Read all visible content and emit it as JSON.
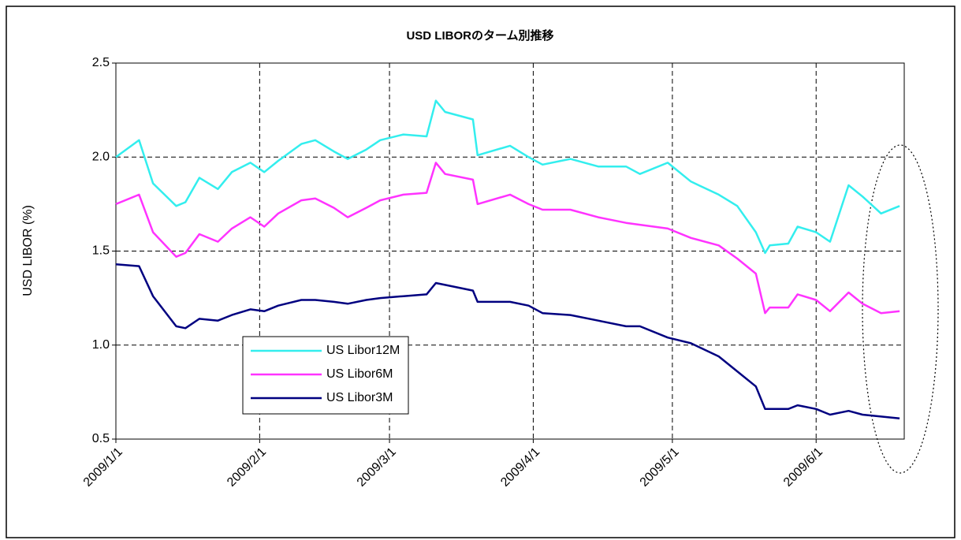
{
  "chart_data": {
    "type": "line",
    "title": "USD LIBORのターム別推移",
    "y_label": "USD LIBOR (%)",
    "x": [
      "2009/1/1",
      "2009/1/6",
      "2009/1/9",
      "2009/1/14",
      "2009/1/16",
      "2009/1/19",
      "2009/1/23",
      "2009/1/26",
      "2009/1/30",
      "2009/2/2",
      "2009/2/5",
      "2009/2/10",
      "2009/2/13",
      "2009/2/17",
      "2009/2/20",
      "2009/2/24",
      "2009/2/27",
      "2009/3/4",
      "2009/3/9",
      "2009/3/11",
      "2009/3/13",
      "2009/3/19",
      "2009/3/20",
      "2009/3/27",
      "2009/3/31",
      "2009/4/3",
      "2009/4/9",
      "2009/4/15",
      "2009/4/21",
      "2009/4/24",
      "2009/4/30",
      "2009/5/5",
      "2009/5/11",
      "2009/5/15",
      "2009/5/19",
      "2009/5/21",
      "2009/5/22",
      "2009/5/26",
      "2009/5/28",
      "2009/6/1",
      "2009/6/4",
      "2009/6/8",
      "2009/6/11",
      "2009/6/15",
      "2009/6/19"
    ],
    "series": [
      {
        "name": "US Libor12M",
        "color": "#33eeee",
        "values": [
          2.0,
          2.09,
          1.86,
          1.74,
          1.76,
          1.89,
          1.83,
          1.92,
          1.97,
          1.92,
          1.98,
          2.07,
          2.09,
          2.03,
          1.99,
          2.04,
          2.09,
          2.12,
          2.11,
          2.3,
          2.24,
          2.2,
          2.01,
          2.06,
          2.0,
          1.96,
          1.99,
          1.95,
          1.95,
          1.91,
          1.97,
          1.87,
          1.8,
          1.74,
          1.6,
          1.49,
          1.53,
          1.54,
          1.63,
          1.6,
          1.55,
          1.85,
          1.79,
          1.7,
          1.74
        ]
      },
      {
        "name": "US Libor6M",
        "color": "#ff33ff",
        "values": [
          1.75,
          1.8,
          1.6,
          1.47,
          1.49,
          1.59,
          1.55,
          1.62,
          1.68,
          1.63,
          1.7,
          1.77,
          1.78,
          1.73,
          1.68,
          1.73,
          1.77,
          1.8,
          1.81,
          1.97,
          1.91,
          1.88,
          1.75,
          1.8,
          1.75,
          1.72,
          1.72,
          1.68,
          1.65,
          1.64,
          1.62,
          1.57,
          1.53,
          1.46,
          1.38,
          1.17,
          1.2,
          1.2,
          1.27,
          1.24,
          1.18,
          1.28,
          1.22,
          1.17,
          1.18
        ]
      },
      {
        "name": "US Libor3M",
        "color": "#000080",
        "values": [
          1.43,
          1.42,
          1.26,
          1.1,
          1.09,
          1.14,
          1.13,
          1.16,
          1.19,
          1.18,
          1.21,
          1.24,
          1.24,
          1.23,
          1.22,
          1.24,
          1.25,
          1.26,
          1.27,
          1.33,
          1.32,
          1.29,
          1.23,
          1.23,
          1.21,
          1.17,
          1.16,
          1.13,
          1.1,
          1.1,
          1.04,
          1.01,
          0.94,
          0.86,
          0.78,
          0.66,
          0.66,
          0.66,
          0.68,
          0.66,
          0.63,
          0.65,
          0.63,
          0.62,
          0.61
        ]
      }
    ],
    "xlim": [
      "2009/1/1",
      "2009/6/20"
    ],
    "xticks": [
      "2009/1/1",
      "2009/2/1",
      "2009/3/1",
      "2009/4/1",
      "2009/5/1",
      "2009/6/1"
    ],
    "ylim": [
      0.5,
      2.5
    ],
    "yticks": [
      {
        "value": 0.5,
        "label": "0.5"
      },
      {
        "value": 1,
        "label": "1.0"
      },
      {
        "value": 1.5,
        "label": "1.5"
      },
      {
        "value": 2,
        "label": "2.0"
      },
      {
        "value": 2.5,
        "label": "2.5"
      }
    ],
    "grid": true
  }
}
